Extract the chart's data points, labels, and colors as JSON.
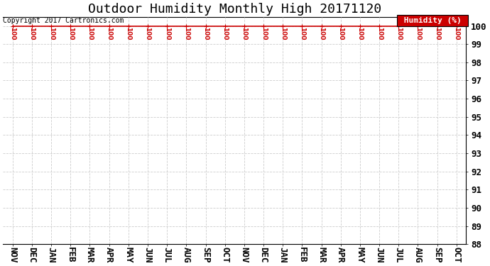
{
  "title": "Outdoor Humidity Monthly High 20171120",
  "ylabel": "Humidity (%)",
  "copyright_text": "Copyright 2017 Cartronics.com",
  "x_labels": [
    "NOV",
    "DEC",
    "JAN",
    "FEB",
    "MAR",
    "APR",
    "MAY",
    "JUN",
    "JUL",
    "AUG",
    "SEP",
    "OCT",
    "NOV",
    "DEC",
    "JAN",
    "FEB",
    "MAR",
    "APR",
    "MAY",
    "JUN",
    "JUL",
    "AUG",
    "SEP",
    "OCT"
  ],
  "y_values": [
    100,
    100,
    100,
    100,
    100,
    100,
    100,
    100,
    100,
    100,
    100,
    100,
    100,
    100,
    100,
    100,
    100,
    100,
    100,
    100,
    100,
    100,
    100,
    100
  ],
  "ylim_min": 88,
  "ylim_max": 100,
  "yticks": [
    88,
    89,
    90,
    91,
    92,
    93,
    94,
    95,
    96,
    97,
    98,
    99,
    100
  ],
  "line_color": "#cc0000",
  "data_label_color": "#cc0000",
  "legend_bg_color": "#cc0000",
  "legend_text_color": "#ffffff",
  "grid_color": "#cccccc",
  "background_color": "#ffffff",
  "title_fontsize": 13,
  "tick_fontsize": 9,
  "ylabel_fontsize": 8,
  "data_label_fontsize": 6.5,
  "copyright_fontsize": 7
}
